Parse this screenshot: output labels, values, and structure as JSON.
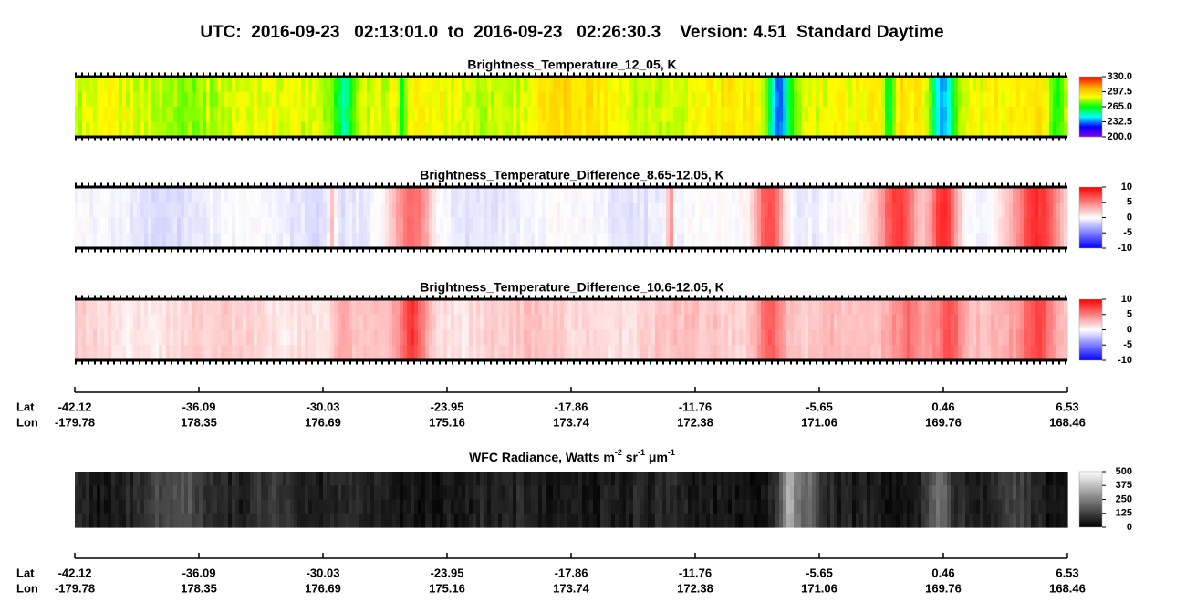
{
  "title": "UTC:  2016-09-23   02:13:01.0  to  2016-09-23   02:26:30.3    Version: 4.51  Standard Daytime",
  "chart_data": [
    {
      "type": "heatmap",
      "title": "Brightness_Temperature_12_05, K",
      "colormap": [
        "#8000ff",
        "#0000ff",
        "#00ffff",
        "#00ff00",
        "#ffff00",
        "#ffa500",
        "#ff0000"
      ],
      "clim": [
        200,
        330
      ],
      "cticks": [
        {
          "value": 330,
          "label": "330.0"
        },
        {
          "value": 297.5,
          "label": "297.5"
        },
        {
          "value": 265,
          "label": "265.0"
        },
        {
          "value": 232.5,
          "label": "232.5"
        },
        {
          "value": 200,
          "label": "200.0"
        }
      ]
    },
    {
      "type": "heatmap",
      "title": "Brightness_Temperature_Difference_8.65-12.05, K",
      "colormap": [
        "#0000ff",
        "#ffffff",
        "#ff0000"
      ],
      "clim": [
        -10,
        10
      ],
      "cticks": [
        10,
        5,
        0,
        -5,
        -10
      ]
    },
    {
      "type": "heatmap",
      "title": "Brightness_Temperature_Difference_10.6-12.05, K",
      "colormap": [
        "#0000ff",
        "#ffffff",
        "#ff0000"
      ],
      "clim": [
        -10,
        10
      ],
      "cticks": [
        10,
        5,
        0,
        -5,
        -10
      ]
    },
    {
      "type": "heatmap",
      "title_parts": [
        "WFC Radiance, Watts m",
        "-2",
        " sr",
        "-1",
        " μm",
        "-1"
      ],
      "colormap": [
        "#000000",
        "#ffffff"
      ],
      "clim": [
        0,
        500
      ],
      "cticks": [
        500,
        375,
        250,
        125,
        0
      ]
    }
  ],
  "location_axis": {
    "lat_label": "Lat",
    "lon_label": "Lon",
    "lat": [
      -42.12,
      -36.09,
      -30.03,
      -23.95,
      -17.86,
      -11.76,
      -5.65,
      0.46,
      6.53
    ],
    "lon": [
      -179.78,
      178.35,
      176.69,
      175.16,
      173.74,
      172.38,
      171.06,
      169.76,
      168.46
    ]
  }
}
